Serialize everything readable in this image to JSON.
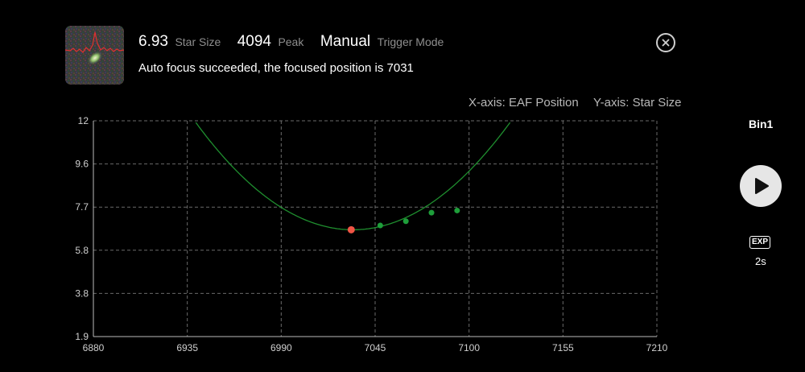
{
  "header": {
    "star_size_value": "6.93",
    "star_size_label": "Star Size",
    "peak_value": "4094",
    "peak_label": "Peak",
    "trigger_value": "Manual",
    "trigger_label": "Trigger Mode",
    "status": "Auto focus succeeded, the focused position is 7031"
  },
  "axis_info": {
    "x": "X-axis: EAF Position",
    "y": "Y-axis: Star Size"
  },
  "side_panel": {
    "bin_label": "Bin1",
    "exp_badge": "EXP",
    "exp_value": "2s"
  },
  "colors": {
    "curve": "#1f8f2f",
    "point": "#1e9e3a",
    "focus_point": "#f05545",
    "grid": "#6a6a6a"
  },
  "chart_data": {
    "type": "scatter",
    "xlabel": "X-axis: EAF Position",
    "ylabel": "Y-axis: Star Size",
    "xlim": [
      6880,
      7210
    ],
    "ylim": [
      1.9,
      12
    ],
    "x_ticks": [
      "6880",
      "6935",
      "6990",
      "7045",
      "7100",
      "7155",
      "7210"
    ],
    "y_ticks": [
      "12",
      "9.6",
      "7.7",
      "5.8",
      "3.8",
      "1.9"
    ],
    "grid": true,
    "fit_curve": {
      "vertex_x": 7032,
      "vertex_y": 6.9,
      "coef": 0.000593
    },
    "points": [
      {
        "x": 7048,
        "y": 7.1
      },
      {
        "x": 7063,
        "y": 7.3
      },
      {
        "x": 7078,
        "y": 7.7
      },
      {
        "x": 7093,
        "y": 7.8
      }
    ],
    "focus_point": {
      "x": 7031,
      "y": 6.9
    }
  }
}
